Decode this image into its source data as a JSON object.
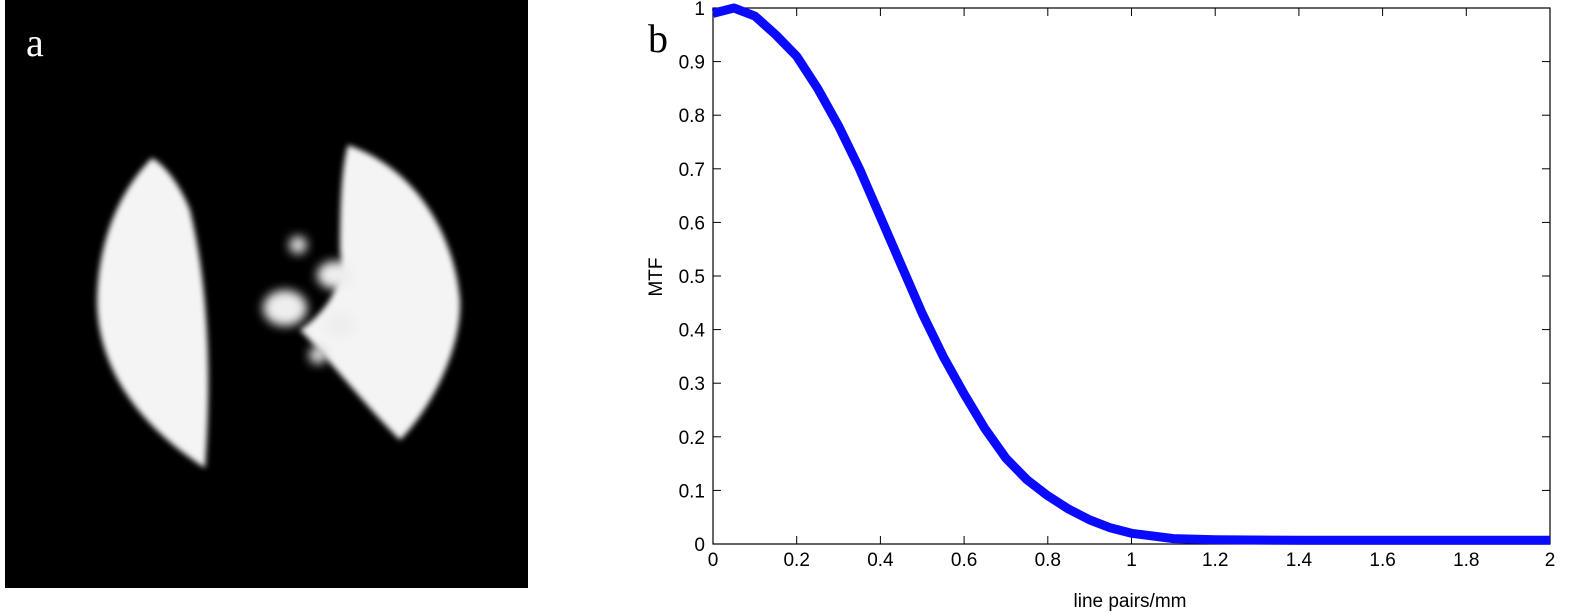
{
  "panels": [
    "a",
    "b"
  ],
  "chart_data": {
    "type": "line",
    "xlabel": "line pairs/mm",
    "ylabel": "MTF",
    "x": [
      0,
      0.05,
      0.1,
      0.15,
      0.2,
      0.25,
      0.3,
      0.35,
      0.4,
      0.45,
      0.5,
      0.55,
      0.6,
      0.65,
      0.7,
      0.75,
      0.8,
      0.85,
      0.9,
      0.95,
      1.0,
      1.1,
      1.2,
      1.4,
      1.6,
      1.8,
      2.0
    ],
    "series": [
      {
        "color": "#0a0aff",
        "values": [
          0.99,
          1.0,
          0.985,
          0.95,
          0.91,
          0.85,
          0.78,
          0.7,
          0.61,
          0.52,
          0.43,
          0.35,
          0.28,
          0.215,
          0.16,
          0.12,
          0.09,
          0.065,
          0.045,
          0.03,
          0.02,
          0.01,
          0.008,
          0.007,
          0.007,
          0.007,
          0.007
        ]
      }
    ],
    "xlim": [
      0,
      2
    ],
    "xticks": [
      0,
      0.2,
      0.4,
      0.6,
      0.8,
      1,
      1.2,
      1.4,
      1.6,
      1.8,
      2
    ],
    "ylim": [
      0,
      1
    ],
    "yticks": [
      0,
      0.1,
      0.2,
      0.3,
      0.4,
      0.5,
      0.6,
      0.7,
      0.8,
      0.9,
      1
    ],
    "grid": false
  }
}
